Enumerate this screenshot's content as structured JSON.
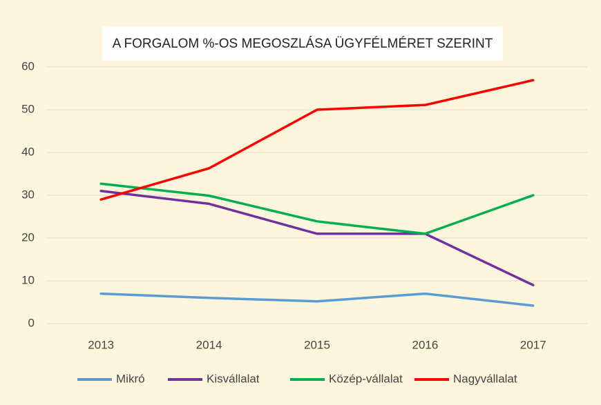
{
  "chart_data": {
    "type": "line",
    "title": "A FORGALOM %-OS MEGOSZLÁSA ÜGYFÉLMÉRET SZERINT",
    "categories": [
      "2013",
      "2014",
      "2015",
      "2016",
      "2017"
    ],
    "series": [
      {
        "name": "Mikró",
        "color": "#5b9bd5",
        "values": [
          7,
          6,
          5.2,
          7,
          4.2
        ]
      },
      {
        "name": "Kisvállalat",
        "color": "#7030a0",
        "values": [
          31,
          28,
          21,
          21,
          9
        ]
      },
      {
        "name": "Közép-vállalat",
        "color": "#00b050",
        "values": [
          32.7,
          29.9,
          23.9,
          21,
          30
        ]
      },
      {
        "name": "Nagyvállalat",
        "color": "#ff0000",
        "values": [
          29,
          36.3,
          50,
          51.1,
          56.9
        ]
      }
    ],
    "ylim": [
      0,
      60
    ],
    "yticks": [
      0,
      10,
      20,
      30,
      40,
      50,
      60
    ],
    "grid": true,
    "legend": "bottom"
  }
}
